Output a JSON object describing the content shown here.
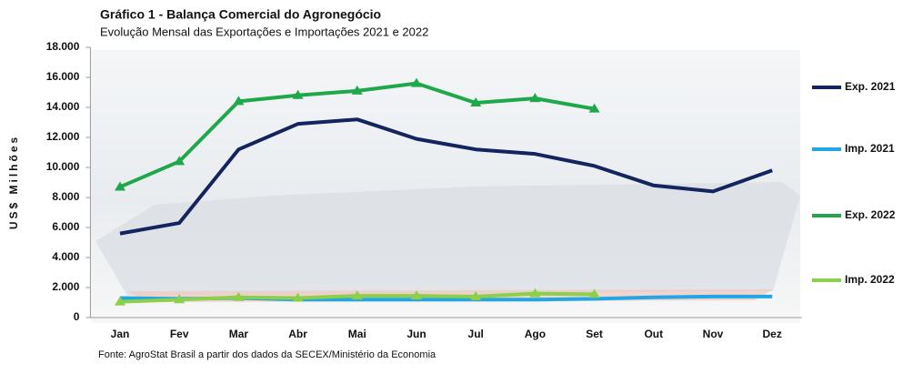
{
  "chart_data": {
    "type": "line",
    "title": "Gráfico 1 - Balança Comercial do Agronegócio",
    "subtitle": "Evolução  Mensal das Exportações e Importações  2021 e 2022",
    "y_label": "US$ Milhões",
    "source": "Fonte: AgroStat Brasil a partir dos dados da SECEX/Ministério  da Economia",
    "categories": [
      "Jan",
      "Fev",
      "Mar",
      "Abr",
      "Mai",
      "Jun",
      "Jul",
      "Ago",
      "Set",
      "Out",
      "Nov",
      "Dez"
    ],
    "ylim": [
      0,
      18000
    ],
    "yticks": [
      0,
      {
        "value": 2000,
        "label": "2.000"
      },
      {
        "value": 4000,
        "label": "4.000"
      },
      {
        "value": 6000,
        "label": "6.000"
      },
      {
        "value": 8000,
        "label": "8.000"
      },
      {
        "value": 10000,
        "label": "10.000"
      },
      {
        "value": 12000,
        "label": "12.000"
      },
      {
        "value": 14000,
        "label": "14.000"
      },
      {
        "value": 16000,
        "label": "16.000"
      },
      {
        "value": 18000,
        "label": "18.000"
      }
    ],
    "legend": "right",
    "series": [
      {
        "name": "Exp. 2021",
        "color": "#13245e",
        "marker": "none",
        "values": [
          5600,
          6300,
          11200,
          12900,
          13200,
          11900,
          11200,
          10900,
          10100,
          8800,
          8400,
          9800
        ]
      },
      {
        "name": "Imp. 2021",
        "color": "#22a6e6",
        "marker": "none",
        "values": [
          1300,
          1250,
          1300,
          1200,
          1200,
          1200,
          1200,
          1200,
          1250,
          1350,
          1400,
          1400
        ]
      },
      {
        "name": "Exp. 2022",
        "color": "#1fa84a",
        "marker": "triangle",
        "values": [
          8700,
          10400,
          14400,
          14800,
          15100,
          15600,
          14300,
          14600,
          13900,
          null,
          null,
          null
        ]
      },
      {
        "name": "Imp. 2022",
        "color": "#8ccf4a",
        "marker": "triangle",
        "values": [
          1050,
          1200,
          1350,
          1300,
          1450,
          1450,
          1400,
          1600,
          1550,
          null,
          null,
          null
        ]
      }
    ]
  }
}
